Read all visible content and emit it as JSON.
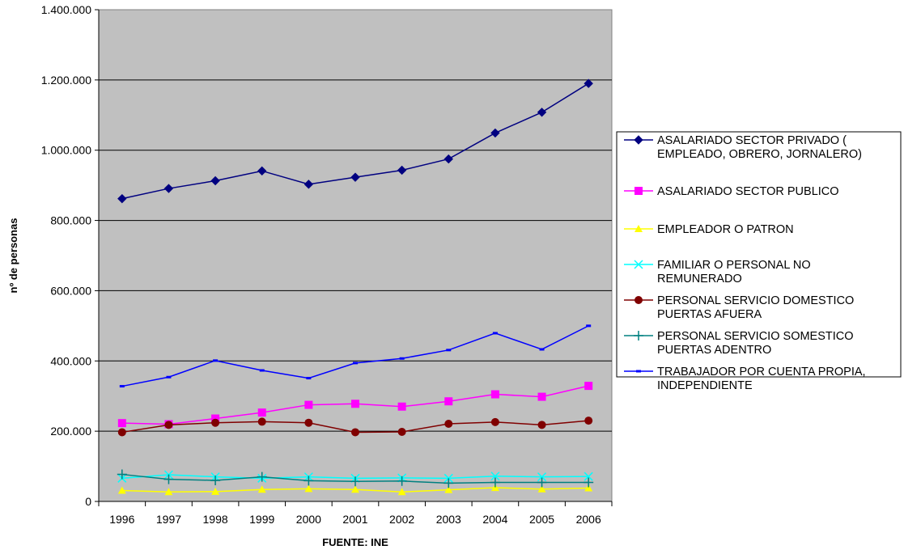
{
  "chart_data": {
    "type": "line",
    "title": "",
    "xlabel": "FUENTE: INE",
    "ylabel": "nº de personas",
    "categories": [
      "1996",
      "1997",
      "1998",
      "1999",
      "2000",
      "2001",
      "2002",
      "2003",
      "2004",
      "2005",
      "2006"
    ],
    "ylim": [
      0,
      1400000
    ],
    "yticks": [
      0,
      200000,
      400000,
      600000,
      800000,
      1000000,
      1200000,
      1400000
    ],
    "ytick_labels": [
      "0",
      "200.000",
      "400.000",
      "600.000",
      "800.000",
      "1.000.000",
      "1.200.000",
      "1.400.000"
    ],
    "grid": true,
    "plot_background": "#c0c0c0",
    "legend_position": "right",
    "series": [
      {
        "name": "ASALARIADO SECTOR PRIVADO ( EMPLEADO, OBRERO, JORNALERO)",
        "legend_lines": [
          "ASALARIADO SECTOR PRIVADO (",
          "EMPLEADO, OBRERO, JORNALERO)"
        ],
        "color": "#000080",
        "marker": "diamond",
        "values": [
          862000,
          891000,
          913000,
          941000,
          903000,
          923000,
          943000,
          975000,
          1049000,
          1108000,
          1190000
        ]
      },
      {
        "name": "ASALARIADO SECTOR PUBLICO",
        "legend_lines": [
          "ASALARIADO SECTOR PUBLICO"
        ],
        "color": "#ff00ff",
        "marker": "square",
        "values": [
          223000,
          220000,
          236000,
          253000,
          275000,
          278000,
          270000,
          285000,
          305000,
          298000,
          329000
        ]
      },
      {
        "name": "EMPLEADOR O PATRON",
        "legend_lines": [
          "EMPLEADOR O PATRON"
        ],
        "color": "#ffff00",
        "marker": "triangle",
        "values": [
          31000,
          27000,
          28000,
          34000,
          36000,
          34000,
          27000,
          33000,
          39000,
          35000,
          38000
        ]
      },
      {
        "name": "FAMILIAR O PERSONAL NO REMUNERADO",
        "legend_lines": [
          "FAMILIAR O PERSONAL NO",
          "REMUNERADO"
        ],
        "color": "#00ffff",
        "marker": "x",
        "values": [
          66000,
          76000,
          70000,
          66000,
          70000,
          66000,
          67000,
          66000,
          72000,
          70000,
          71000
        ]
      },
      {
        "name": "PERSONAL SERVICIO DOMESTICO PUERTAS AFUERA",
        "legend_lines": [
          "PERSONAL SERVICIO DOMESTICO",
          "PUERTAS AFUERA"
        ],
        "color": "#800000",
        "marker": "circle",
        "values": [
          197000,
          218000,
          224000,
          227000,
          224000,
          197000,
          198000,
          221000,
          226000,
          218000,
          230000
        ]
      },
      {
        "name": "PERSONAL SERVICIO SOMESTICO PUERTAS ADENTRO",
        "legend_lines": [
          "PERSONAL SERVICIO SOMESTICO",
          "PUERTAS ADENTRO"
        ],
        "color": "#008080",
        "marker": "plus",
        "values": [
          77000,
          63000,
          60000,
          70000,
          59000,
          57000,
          58000,
          52000,
          54000,
          54000,
          54000
        ]
      },
      {
        "name": "TRABAJADOR POR CUENTA PROPIA, INDEPENDIENTE",
        "legend_lines": [
          "TRABAJADOR POR CUENTA PROPIA,",
          "INDEPENDIENTE"
        ],
        "color": "#0000ff",
        "marker": "dash",
        "values": [
          328000,
          354000,
          401000,
          373000,
          351000,
          394000,
          407000,
          431000,
          479000,
          433000,
          500000
        ]
      }
    ]
  }
}
